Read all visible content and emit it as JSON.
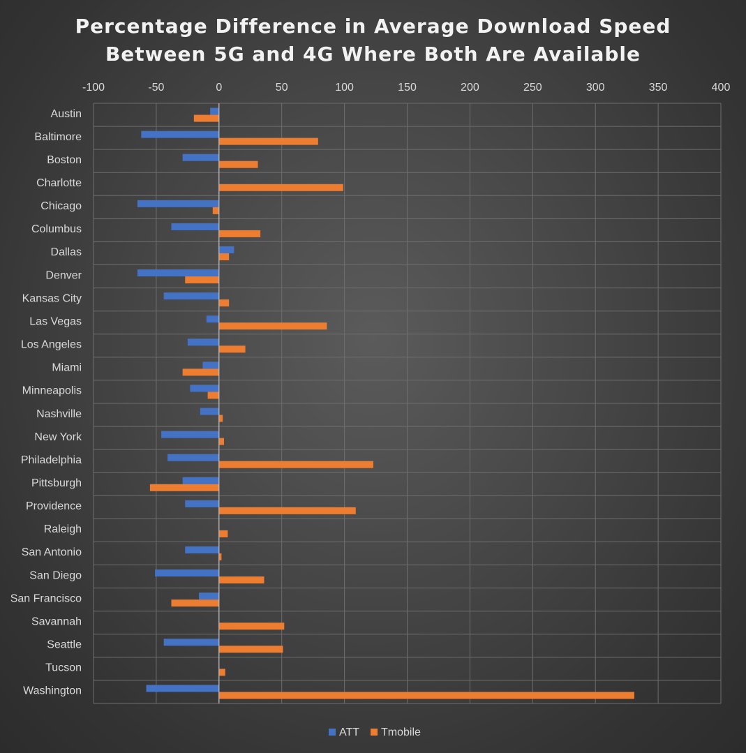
{
  "title_line1": "Percentage Difference in Average Download Speed",
  "title_line2": "Between 5G and 4G Where Both Are Available",
  "colors": {
    "att": "#4472c4",
    "tmobile": "#ed7d31",
    "grid": "#6e6e6e",
    "axis": "#bfbfbf"
  },
  "chart_data": {
    "type": "bar",
    "orientation": "horizontal",
    "title": "Percentage Difference in Average Download Speed Between 5G and 4G Where Both Are Available",
    "xlim": [
      -100,
      400
    ],
    "x_ticks": [
      -100,
      -50,
      0,
      50,
      100,
      150,
      200,
      250,
      300,
      350,
      400
    ],
    "grid": true,
    "legend_position": "bottom",
    "categories": [
      "Austin",
      "Baltimore",
      "Boston",
      "Charlotte",
      "Chicago",
      "Columbus",
      "Dallas",
      "Denver",
      "Kansas City",
      "Las Vegas",
      "Los Angeles",
      "Miami",
      "Minneapolis",
      "Nashville",
      "New York",
      "Philadelphia",
      "Pittsburgh",
      "Providence",
      "Raleigh",
      "San Antonio",
      "San Diego",
      "San Francisco",
      "Savannah",
      "Seattle",
      "Tucson",
      "Washington"
    ],
    "series": [
      {
        "name": "ATT",
        "values": [
          -7,
          -62,
          -29,
          0,
          -65,
          -38,
          12,
          -65,
          -44,
          -10,
          -25,
          -13,
          -23,
          -15,
          -46,
          -41,
          -29,
          -27,
          0,
          -27,
          -51,
          -16,
          0,
          -44,
          0,
          -58
        ]
      },
      {
        "name": "Tmobile",
        "values": [
          -20,
          79,
          31,
          99,
          -5,
          33,
          8,
          -27,
          8,
          86,
          21,
          -29,
          -9,
          3,
          4,
          123,
          -55,
          109,
          7,
          2,
          36,
          -38,
          52,
          51,
          5,
          331
        ]
      }
    ]
  }
}
